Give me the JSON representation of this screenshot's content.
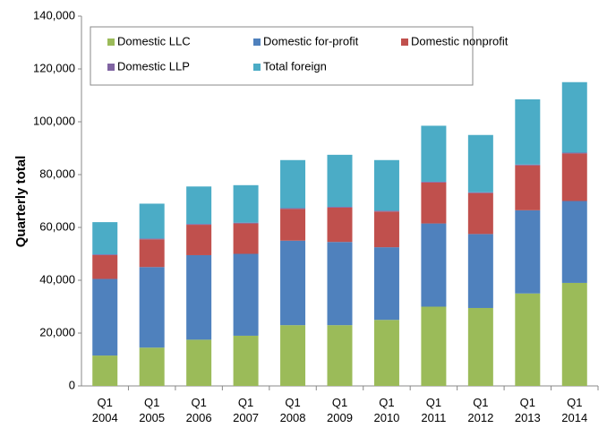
{
  "chart_data": {
    "type": "stacked_bar",
    "y_label": "Quarterly total",
    "categories": [
      "Q1 2004",
      "Q1 2005",
      "Q1 2006",
      "Q1 2007",
      "Q1 2008",
      "Q1 2009",
      "Q1 2010",
      "Q1 2011",
      "Q1 2012",
      "Q1 2013",
      "Q1 2014"
    ],
    "series": [
      {
        "name": "Domestic LLC",
        "color": "#9bbb59",
        "values": [
          11500,
          14500,
          17500,
          19000,
          23000,
          23000,
          25000,
          30000,
          29500,
          35000,
          39000
        ]
      },
      {
        "name": "Domestic for-profit",
        "color": "#4f81bd",
        "values": [
          29000,
          30500,
          32000,
          31000,
          32000,
          31500,
          27500,
          31500,
          28000,
          31500,
          31000
        ]
      },
      {
        "name": "Domestic nonprofit",
        "color": "#c0504d",
        "values": [
          9000,
          10500,
          11500,
          11500,
          12000,
          13000,
          13500,
          15500,
          15500,
          17000,
          18000
        ]
      },
      {
        "name": "Domestic LLP",
        "color": "#8064a2",
        "values": [
          300,
          300,
          300,
          300,
          300,
          300,
          300,
          300,
          300,
          300,
          300
        ]
      },
      {
        "name": "Total foreign",
        "color": "#4bacc6",
        "values": [
          12200,
          13200,
          14200,
          14200,
          18200,
          19700,
          19200,
          21200,
          21700,
          24700,
          26700
        ]
      }
    ],
    "ylim": [
      0,
      140000
    ],
    "yticks": [
      {
        "value": 0,
        "label": "0"
      },
      {
        "value": 20000,
        "label": "20,000"
      },
      {
        "value": 40000,
        "label": "40,000"
      },
      {
        "value": 60000,
        "label": "60,000"
      },
      {
        "value": 80000,
        "label": "80,000"
      },
      {
        "value": 100000,
        "label": "100,000"
      },
      {
        "value": 120000,
        "label": "120,000"
      },
      {
        "value": 140000,
        "label": "140,000"
      }
    ]
  }
}
